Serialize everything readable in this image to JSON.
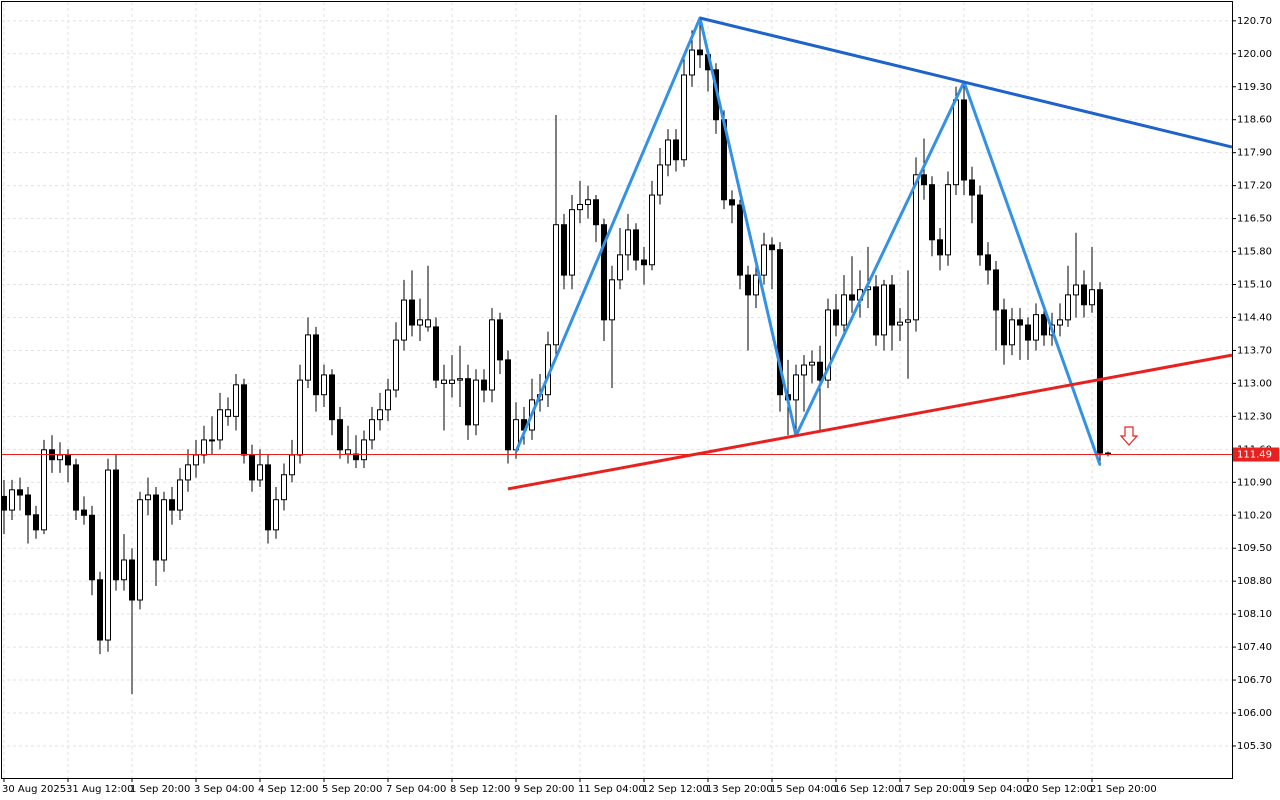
{
  "chart_data": {
    "type": "candlestick",
    "ylim": [
      104.62,
      121.1
    ],
    "yticks": [
      {
        "value": 105.3,
        "label": "105.30"
      },
      {
        "value": 106.0,
        "label": "106.00"
      },
      {
        "value": 106.7,
        "label": "106.70"
      },
      {
        "value": 107.4,
        "label": "107.40"
      },
      {
        "value": 108.1,
        "label": "108.10"
      },
      {
        "value": 108.8,
        "label": "108.80"
      },
      {
        "value": 109.5,
        "label": "109.50"
      },
      {
        "value": 110.2,
        "label": "110.20"
      },
      {
        "value": 110.9,
        "label": "110.90"
      },
      {
        "value": 111.6,
        "label": "111.60"
      },
      {
        "value": 112.3,
        "label": "112.30"
      },
      {
        "value": 113.0,
        "label": "113.00"
      },
      {
        "value": 113.7,
        "label": "113.70"
      },
      {
        "value": 114.4,
        "label": "114.40"
      },
      {
        "value": 115.1,
        "label": "115.10"
      },
      {
        "value": 115.8,
        "label": "115.80"
      },
      {
        "value": 116.5,
        "label": "116.50"
      },
      {
        "value": 117.2,
        "label": "117.20"
      },
      {
        "value": 117.9,
        "label": "117.90"
      },
      {
        "value": 118.6,
        "label": "118.60"
      },
      {
        "value": 119.3,
        "label": "119.30"
      },
      {
        "value": 120.0,
        "label": "120.00"
      },
      {
        "value": 120.7,
        "label": "120.70"
      }
    ],
    "grid": true,
    "bull_color": "#ffffff",
    "bear_color": "#000000",
    "categories": [
      "30 Aug 2025",
      null,
      null,
      null,
      null,
      null,
      null,
      null,
      "31 Aug 12:00",
      null,
      null,
      null,
      null,
      null,
      null,
      null,
      "1 Sep 20:00",
      null,
      null,
      null,
      null,
      null,
      null,
      null,
      "3 Sep 04:00",
      null,
      null,
      null,
      null,
      null,
      null,
      null,
      "4 Sep 12:00",
      null,
      null,
      null,
      null,
      null,
      null,
      null,
      "5 Sep 20:00",
      null,
      null,
      null,
      null,
      null,
      null,
      null,
      "7 Sep 04:00",
      null,
      null,
      null,
      null,
      null,
      null,
      null,
      "8 Sep 12:00",
      null,
      null,
      null,
      null,
      null,
      null,
      null,
      "9 Sep 20:00",
      null,
      null,
      null,
      null,
      null,
      null,
      null,
      "11 Sep 04:00",
      null,
      null,
      null,
      null,
      null,
      null,
      null,
      "12 Sep 12:00",
      null,
      null,
      null,
      null,
      null,
      null,
      null,
      "13 Sep 20:00",
      null,
      null,
      null,
      null,
      null,
      null,
      null,
      "15 Sep 04:00",
      null,
      null,
      null,
      null,
      null,
      null,
      null,
      "16 Sep 12:00",
      null,
      null,
      null,
      null,
      null,
      null,
      null,
      "17 Sep 20:00",
      null,
      null,
      null,
      null,
      null,
      null,
      null,
      "19 Sep 04:00",
      null,
      null,
      null,
      null,
      null,
      null,
      null,
      "20 Sep 12:00",
      null,
      null,
      null,
      null,
      null,
      null,
      null,
      "21 Sep 20:00",
      null,
      null
    ],
    "open": [
      110.6,
      110.31,
      110.74,
      110.63,
      110.21,
      109.89,
      111.59,
      111.38,
      111.48,
      111.27,
      110.31,
      110.2,
      108.83,
      107.55,
      111.16,
      108.83,
      109.25,
      108.4,
      110.53,
      110.63,
      109.25,
      110.53,
      110.31,
      110.95,
      111.27,
      111.48,
      111.8,
      111.8,
      112.3,
      112.3,
      112.97,
      111.48,
      110.95,
      111.27,
      109.89,
      110.53,
      111.06,
      111.48,
      113.07,
      114.03,
      112.76,
      113.18,
      112.23,
      111.5,
      111.5,
      111.38,
      111.8,
      112.23,
      112.44,
      112.86,
      113.92,
      114.77,
      114.24,
      114.2,
      114.2,
      113.0,
      113.0,
      113.07,
      113.1,
      112.12,
      113.07,
      112.86,
      114.35,
      113.5,
      111.59,
      112.23,
      112.01,
      112.65,
      112.76,
      113.82,
      116.37,
      115.3,
      116.69,
      116.8,
      116.9,
      116.37,
      114.35,
      115.2,
      115.73,
      116.26,
      115.62,
      115.52,
      117.0,
      117.64,
      118.17,
      117.75,
      119.55,
      120.08,
      119.98,
      119.66,
      118.6,
      116.9,
      116.79,
      115.3,
      114.88,
      115.3,
      115.94,
      115.84,
      112.76,
      112.65,
      113.18,
      113.39,
      113.45,
      113.07,
      114.56,
      114.24,
      114.88,
      114.77,
      114.99,
      115.05,
      114.03,
      115.09,
      114.24,
      114.3,
      114.35,
      117.43,
      117.22,
      116.05,
      115.73,
      117.22,
      119.02,
      117.32,
      117.0,
      115.73,
      115.41,
      114.56,
      113.82,
      114.35,
      114.24,
      113.92,
      114.46,
      114.03,
      114.24,
      114.35,
      114.88,
      115.09,
      114.67,
      114.99,
      111.52
    ],
    "high": [
      110.95,
      110.95,
      111.0,
      110.8,
      110.4,
      111.8,
      111.9,
      111.75,
      111.6,
      111.4,
      110.6,
      110.4,
      109.0,
      111.4,
      111.5,
      109.8,
      109.5,
      110.7,
      111.0,
      110.8,
      110.7,
      110.8,
      111.2,
      111.6,
      111.8,
      112.1,
      112.3,
      112.8,
      112.7,
      113.2,
      113.1,
      111.7,
      111.6,
      111.5,
      110.8,
      111.3,
      111.8,
      113.4,
      114.4,
      114.2,
      113.4,
      113.3,
      112.5,
      112.1,
      111.9,
      112.0,
      112.5,
      112.8,
      113.1,
      114.3,
      115.2,
      115.4,
      114.8,
      115.5,
      114.4,
      113.4,
      113.6,
      113.8,
      113.4,
      113.3,
      113.3,
      114.6,
      114.5,
      113.7,
      112.6,
      112.5,
      113.1,
      113.2,
      114.1,
      118.7,
      116.6,
      117.0,
      117.3,
      117.2,
      117.0,
      116.5,
      115.5,
      116.3,
      116.6,
      116.4,
      115.9,
      117.3,
      118.0,
      118.4,
      118.4,
      119.9,
      120.5,
      120.76,
      120.1,
      119.8,
      118.8,
      117.1,
      116.9,
      115.5,
      115.6,
      116.2,
      116.1,
      116.0,
      113.5,
      113.4,
      113.6,
      113.7,
      113.8,
      114.8,
      114.9,
      115.3,
      115.7,
      115.4,
      115.9,
      115.3,
      115.2,
      115.3,
      114.6,
      115.4,
      117.8,
      118.2,
      117.4,
      116.3,
      117.5,
      119.3,
      119.4,
      117.6,
      117.2,
      116.0,
      115.6,
      114.8,
      114.6,
      114.6,
      114.4,
      114.7,
      114.6,
      114.5,
      114.7,
      115.5,
      116.2,
      115.4,
      115.9,
      115.15,
      111.55
    ],
    "low": [
      109.8,
      110.1,
      110.3,
      109.6,
      109.7,
      109.8,
      111.1,
      111.1,
      110.9,
      110.1,
      110.0,
      108.5,
      107.25,
      107.3,
      108.6,
      108.6,
      106.4,
      108.2,
      110.2,
      108.7,
      109.0,
      110.0,
      110.1,
      110.7,
      111.0,
      111.3,
      111.5,
      111.6,
      112.1,
      112.0,
      111.3,
      110.7,
      110.8,
      109.6,
      109.7,
      110.3,
      110.9,
      111.3,
      112.9,
      112.4,
      112.5,
      111.9,
      111.4,
      111.3,
      111.2,
      111.2,
      111.6,
      112.0,
      112.2,
      112.7,
      113.7,
      114.0,
      113.9,
      114.1,
      112.9,
      112.0,
      112.7,
      112.5,
      111.8,
      111.9,
      112.6,
      112.6,
      113.2,
      111.3,
      111.4,
      111.7,
      111.8,
      112.4,
      112.5,
      113.6,
      115.0,
      115.0,
      116.4,
      116.5,
      116.0,
      113.9,
      112.9,
      115.0,
      115.4,
      115.4,
      115.1,
      115.4,
      116.8,
      117.4,
      117.5,
      117.6,
      119.3,
      119.7,
      119.2,
      118.3,
      116.7,
      116.4,
      115.0,
      113.7,
      114.6,
      115.1,
      115.0,
      112.4,
      111.9,
      111.9,
      112.4,
      113.0,
      112.0,
      112.9,
      114.0,
      114.0,
      114.5,
      114.4,
      114.6,
      113.8,
      113.7,
      113.7,
      113.9,
      113.1,
      114.1,
      116.9,
      115.7,
      115.4,
      115.5,
      117.0,
      117.0,
      116.4,
      115.5,
      115.1,
      113.7,
      113.4,
      113.6,
      113.5,
      113.5,
      113.7,
      113.8,
      113.8,
      114.0,
      114.2,
      114.4,
      114.4,
      114.5,
      111.25,
      111.45
    ],
    "close": [
      110.31,
      110.74,
      110.63,
      110.21,
      109.89,
      111.59,
      111.38,
      111.48,
      111.27,
      110.31,
      110.2,
      108.83,
      107.55,
      111.16,
      108.83,
      109.25,
      108.4,
      110.53,
      110.63,
      109.25,
      110.53,
      110.31,
      110.95,
      111.27,
      111.48,
      111.8,
      111.8,
      112.44,
      112.44,
      112.97,
      111.48,
      110.95,
      111.27,
      109.89,
      110.53,
      111.06,
      111.48,
      113.07,
      114.03,
      112.76,
      113.18,
      112.23,
      111.59,
      111.59,
      111.38,
      111.8,
      112.23,
      112.44,
      112.86,
      113.92,
      114.77,
      114.24,
      114.35,
      114.35,
      113.07,
      113.07,
      113.07,
      113.1,
      112.12,
      113.07,
      112.86,
      114.35,
      113.5,
      111.59,
      112.23,
      112.01,
      112.65,
      112.76,
      113.82,
      116.37,
      115.3,
      116.69,
      116.8,
      116.9,
      116.37,
      114.35,
      115.2,
      115.73,
      116.26,
      115.62,
      115.52,
      117.0,
      117.64,
      118.17,
      117.75,
      119.55,
      120.08,
      119.98,
      119.66,
      118.6,
      116.9,
      116.79,
      115.3,
      114.88,
      115.3,
      115.94,
      115.84,
      112.76,
      112.65,
      113.18,
      113.39,
      113.45,
      113.07,
      114.56,
      114.24,
      114.88,
      114.77,
      114.99,
      115.05,
      114.03,
      115.09,
      114.24,
      114.3,
      114.35,
      117.43,
      117.22,
      116.05,
      115.73,
      117.22,
      119.02,
      117.32,
      117.0,
      115.73,
      115.41,
      114.56,
      113.82,
      114.35,
      114.24,
      113.92,
      114.46,
      114.03,
      114.24,
      114.35,
      114.88,
      115.09,
      114.67,
      114.99,
      111.52,
      111.49
    ],
    "current_price": 111.49,
    "current_price_label": "111.49",
    "current_price_color": "#e8211f",
    "trendlines": [
      {
        "color": "#3391e6",
        "extend": false,
        "x": [
          64,
          87,
          99,
          120,
          137
        ],
        "y": [
          111.55,
          120.76,
          111.89,
          119.4,
          111.27
        ]
      },
      {
        "color": "#1d63c9",
        "extend": true,
        "x": [
          87,
          120
        ],
        "y": [
          120.76,
          119.4
        ]
      },
      {
        "color": "#e8211f",
        "extend": true,
        "x": [
          63,
          99
        ],
        "y": [
          110.76,
          111.89
        ]
      }
    ]
  }
}
